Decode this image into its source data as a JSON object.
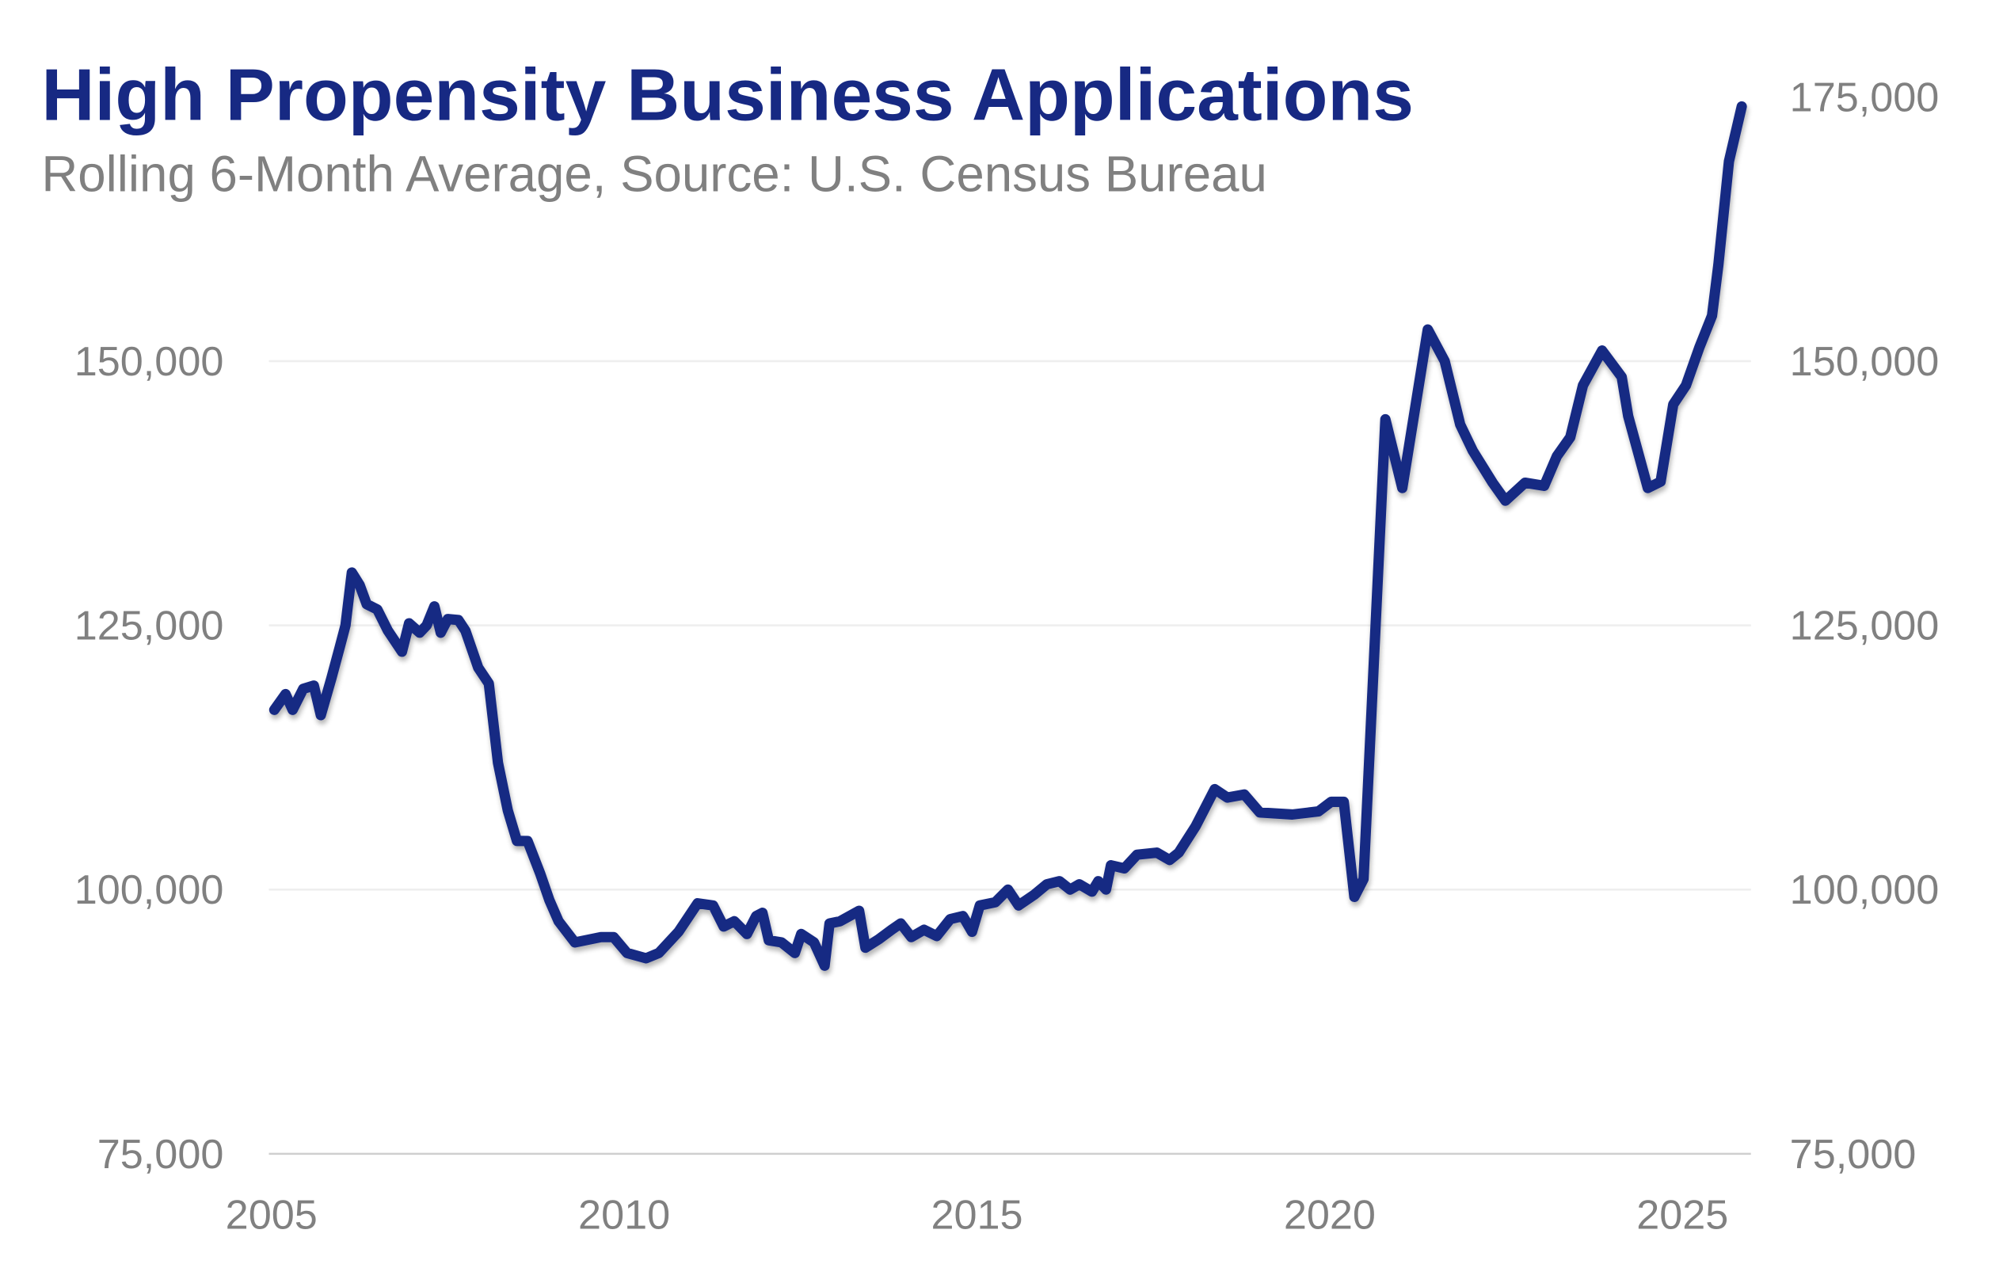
{
  "chart_data": {
    "type": "line",
    "title": "High Propensity Business Applications",
    "subtitle": "Rolling 6-Month Average, Source: U.S. Census Bureau",
    "xlabel": "",
    "ylabel": "",
    "xlim": [
      2005,
      2026
    ],
    "ylim": [
      75000,
      175000
    ],
    "x_ticks": [
      2005,
      2010,
      2015,
      2020,
      2025
    ],
    "x_tick_labels": [
      "2005",
      "2010",
      "2015",
      "2020",
      "2025"
    ],
    "y_ticks": [
      75000,
      100000,
      125000,
      150000,
      175000
    ],
    "y_tick_labels": [
      "75,000",
      "100,000",
      "125,000",
      "150,000",
      "175,000"
    ],
    "left_axis_labels": [
      "75,000",
      "100,000",
      "125,000",
      "150,000"
    ],
    "right_axis_labels": [
      "75,000",
      "100,000",
      "125,000",
      "150,000",
      "175,000"
    ],
    "grid": "horizontal",
    "line_color": "#172983",
    "series": [
      {
        "x": [
          2005.04,
          2005.2,
          2005.3,
          2005.45,
          2005.6,
          2005.7,
          2005.85,
          2005.97,
          2006.05,
          2006.14,
          2006.25,
          2006.35,
          2006.5,
          2006.65,
          2006.85,
          2006.95,
          2007.1,
          2007.2,
          2007.31,
          2007.4,
          2007.5,
          2007.65,
          2007.75,
          2007.93,
          2008.08,
          2008.21,
          2008.35,
          2008.48,
          2008.63,
          2008.81,
          2008.94,
          2009.07,
          2009.3,
          2009.67,
          2009.85,
          2010.04,
          2010.31,
          2010.49,
          2010.77,
          2011.04,
          2011.26,
          2011.41,
          2011.56,
          2011.74,
          2011.87,
          2011.96,
          2012.05,
          2012.23,
          2012.42,
          2012.51,
          2012.69,
          2012.84,
          2012.91,
          2013.06,
          2013.33,
          2013.42,
          2013.61,
          2013.79,
          2013.92,
          2014.07,
          2014.25,
          2014.43,
          2014.62,
          2014.8,
          2014.93,
          2015.04,
          2015.26,
          2015.44,
          2015.59,
          2015.81,
          2015.99,
          2016.17,
          2016.32,
          2016.45,
          2016.63,
          2016.72,
          2016.83,
          2016.9,
          2017.09,
          2017.27,
          2017.55,
          2017.73,
          2017.86,
          2018.1,
          2018.37,
          2018.55,
          2018.79,
          2019.01,
          2019.47,
          2019.84,
          2020.02,
          2020.2,
          2020.35,
          2020.48,
          2020.79,
          2021.03,
          2021.39,
          2021.63,
          2021.85,
          2022.03,
          2022.31,
          2022.49,
          2022.77,
          2023.04,
          2023.22,
          2023.41,
          2023.59,
          2023.86,
          2024.14,
          2024.23,
          2024.51,
          2024.69,
          2024.87,
          2025.05,
          2025.24,
          2025.42,
          2025.51,
          2025.66,
          2025.84
        ],
        "y": [
          117000,
          118500,
          117000,
          119000,
          119300,
          116500,
          120000,
          123000,
          125000,
          130000,
          128800,
          127000,
          126500,
          124500,
          122500,
          125200,
          124300,
          125000,
          126800,
          124300,
          125600,
          125500,
          124500,
          121000,
          119500,
          112000,
          107500,
          104600,
          104600,
          101500,
          99000,
          97000,
          95000,
          95500,
          95500,
          94000,
          93500,
          94000,
          96000,
          98700,
          98500,
          96500,
          97000,
          95800,
          97500,
          97800,
          95200,
          95000,
          94000,
          95800,
          95000,
          92800,
          96800,
          97000,
          98000,
          94500,
          95300,
          96200,
          96800,
          95500,
          96200,
          95600,
          97200,
          97500,
          96000,
          98500,
          98800,
          100000,
          98500,
          99500,
          100500,
          100800,
          100000,
          100500,
          99800,
          100800,
          100000,
          102300,
          102000,
          103300,
          103500,
          102800,
          103500,
          106000,
          109500,
          108700,
          109000,
          107300,
          107100,
          107400,
          108300,
          108300,
          99300,
          101000,
          144500,
          138000,
          153000,
          150000,
          144000,
          141500,
          138500,
          136800,
          138500,
          138200,
          141000,
          142800,
          147700,
          151000,
          148500,
          144800,
          138000,
          138600,
          145900,
          147700,
          151300,
          154300,
          159100,
          168900,
          174100
        ]
      }
    ]
  }
}
